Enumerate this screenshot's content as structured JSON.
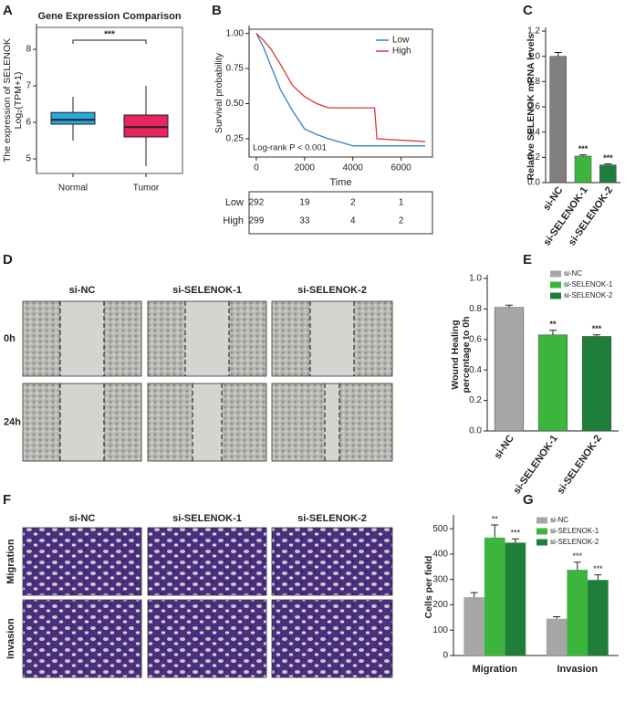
{
  "panel_labels": [
    "A",
    "B",
    "C",
    "D",
    "E",
    "F",
    "G"
  ],
  "chart_data": [
    {
      "type": "box",
      "title": "Gene Expression Comparison",
      "ylabel": [
        "The expression of SELENOK",
        "Log₂(TPM+1)"
      ],
      "categories": [
        "Normal",
        "Tumor"
      ],
      "colors": [
        "#2aa7dc",
        "#e8245e"
      ],
      "boxes": [
        {
          "min": 5.5,
          "q1": 5.95,
          "median": 6.07,
          "q3": 6.27,
          "max": 6.7
        },
        {
          "min": 4.8,
          "q1": 5.6,
          "median": 5.87,
          "q3": 6.2,
          "max": 7.0
        }
      ],
      "ylim": [
        4.6,
        8.6
      ],
      "yticks": [
        5,
        6,
        7,
        8
      ],
      "annotation": "***"
    },
    {
      "type": "km",
      "xlabel": "Time",
      "ylabel": "Survival probability",
      "annotation": "Log-rank P < 0.001",
      "xlim": [
        -300,
        7300
      ],
      "xticks": [
        0,
        2000,
        4000,
        6000
      ],
      "ylim": [
        0.12,
        1.03
      ],
      "yticks": [
        {
          "value": 0.25,
          "label": "0.25"
        },
        {
          "value": 0.5,
          "label": "0.50"
        },
        {
          "value": 0.75,
          "label": "0.75"
        },
        {
          "value": 1,
          "label": "1.00"
        }
      ],
      "legend": "upper right",
      "series": [
        {
          "name": "Low",
          "color": "#3a7fc4",
          "x": [
            0,
            300,
            600,
            1000,
            1500,
            2000,
            2500,
            3000,
            4000,
            7000
          ],
          "values": [
            1,
            0.9,
            0.77,
            0.6,
            0.45,
            0.32,
            0.28,
            0.25,
            0.2,
            0.2
          ],
          "at_risk": [
            292,
            19,
            2,
            1
          ]
        },
        {
          "name": "High",
          "color": "#e0343c",
          "x": [
            0,
            300,
            600,
            1000,
            1500,
            2000,
            2500,
            3000,
            4900,
            5000,
            7000
          ],
          "values": [
            1,
            0.95,
            0.89,
            0.78,
            0.63,
            0.55,
            0.5,
            0.47,
            0.47,
            0.25,
            0.23
          ],
          "at_risk": [
            299,
            33,
            4,
            2
          ]
        }
      ]
    },
    {
      "type": "bar",
      "ylabel": "Relative SELENOK mRNA levels",
      "categories": [
        "si-NC",
        "si-SELENOK-1",
        "si-SELENOK-2"
      ],
      "values": [
        1.0,
        0.21,
        0.14
      ],
      "errors": [
        0.03,
        0.01,
        0.008
      ],
      "annotations": [
        null,
        "***",
        "***"
      ],
      "colors": [
        "#7f7f7f",
        "#3cb53c",
        "#1e7e3a"
      ],
      "ylim": [
        0,
        1.2
      ],
      "yticks": [
        {
          "value": 0,
          "label": "0.0"
        },
        0.2,
        0.4,
        0.6,
        0.8,
        {
          "value": 1,
          "label": "1.0"
        },
        1.2
      ]
    },
    {
      "type": "bar",
      "ylabel": [
        "Wound Healing",
        "percentage to 0h"
      ],
      "categories": [
        "si-NC",
        "si-SELENOK-1",
        "si-SELENOK-2"
      ],
      "values": [
        0.81,
        0.63,
        0.62
      ],
      "errors": [
        0.015,
        0.03,
        0.01
      ],
      "annotations": [
        null,
        "**",
        "***"
      ],
      "colors": [
        "#a6a6a6",
        "#3cb53c",
        "#1e7e3a"
      ],
      "legend": "upper right",
      "ylim": [
        0,
        1.0
      ],
      "yticks": [
        {
          "value": 0,
          "label": "0.0"
        },
        0.2,
        0.4,
        0.6,
        0.8,
        {
          "value": 1,
          "label": "1.0"
        }
      ]
    },
    {
      "type": "grouped_bar",
      "ylabel": "Cells per field",
      "categories": [
        "Migration",
        "Invasion"
      ],
      "legend": "upper right",
      "series": [
        {
          "name": "si-NC",
          "color": "#a6a6a6",
          "values": [
            230,
            145
          ],
          "errors": [
            18,
            8
          ],
          "annotations": [
            null,
            null
          ]
        },
        {
          "name": "si-SELENOK-1",
          "color": "#3cb53c",
          "values": [
            465,
            338
          ],
          "errors": [
            50,
            30
          ],
          "annotations": [
            "**",
            "***"
          ]
        },
        {
          "name": "si-SELENOK-2",
          "color": "#1e7e3a",
          "values": [
            445,
            298
          ],
          "errors": [
            15,
            20
          ],
          "annotations": [
            "***",
            "***"
          ]
        }
      ],
      "ylim": [
        0,
        540
      ],
      "yticks": [
        0,
        100,
        200,
        300,
        400,
        500
      ]
    }
  ],
  "images": {
    "wound": {
      "columns": [
        "si-NC",
        "si-SELENOK-1",
        "si-SELENOK-2"
      ],
      "rows": [
        "0h",
        "24h"
      ]
    },
    "transwell": {
      "columns": [
        "si-NC",
        "si-SELENOK-1",
        "si-SELENOK-2"
      ],
      "rows": [
        "Migration",
        "Invasion"
      ]
    }
  }
}
